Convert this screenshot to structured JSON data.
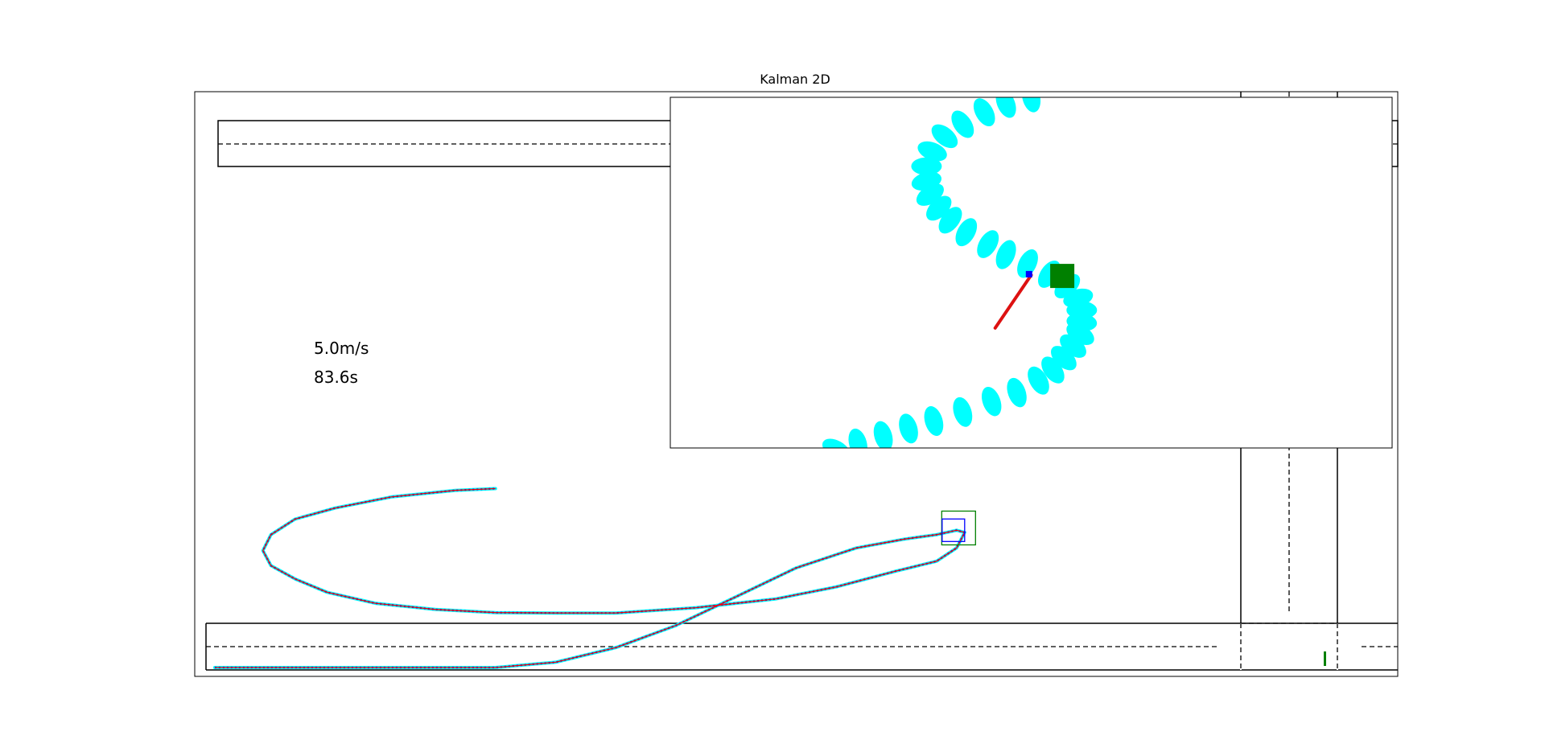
{
  "figure": {
    "title": "Kalman 2D",
    "speed_text": "5.0m/s",
    "time_text": "83.6s"
  },
  "colors": {
    "road_line": "#000000",
    "lane_marking": "#000000",
    "measurement_ellipse": "#00ffff",
    "kalman_estimate": "#0000ff",
    "true_path": "#ff0000",
    "vehicle": "#008000",
    "heading_line": "#dd1111"
  },
  "icons": {
    "vehicle": "green-square-marker",
    "estimate": "blue-square-marker"
  },
  "chart_data": {
    "type": "line",
    "main_view": {
      "series": [
        {
          "x": [
            -70,
            -60,
            -40,
            -20,
            -8,
            0,
            15,
            30,
            45,
            60,
            75,
            90,
            102,
            110,
            115,
            117,
            115,
            110,
            100,
            85,
            70,
            50,
            30,
            15,
            0,
            -15,
            -30,
            -42,
            -50,
            -56,
            -58,
            -56,
            -50,
            -40,
            -26,
            -10,
            0
          ],
          "y": [
            0,
            0,
            0,
            0,
            0,
            0,
            1.2,
            4.5,
            9.5,
            16,
            22.5,
            27,
            29,
            30,
            31,
            30.5,
            27,
            24,
            21.8,
            18.2,
            15.5,
            13.5,
            12.3,
            12.3,
            12.4,
            13.1,
            14.5,
            17,
            20,
            23,
            26.4,
            30,
            33.5,
            36,
            38.5,
            40,
            40.4
          ]
        }
      ],
      "vehicle_position": [
        115.5,
        31.5
      ],
      "estimate_position": [
        114.2,
        31
      ],
      "xlim": [
        -75,
        225
      ],
      "ylim": [
        -2,
        130
      ]
    },
    "zoom_view": {
      "ellipses": [
        [
          0.0,
          -38
        ],
        [
          -3.5,
          -36
        ],
        [
          -6.5,
          -33
        ],
        [
          -9.5,
          -29
        ],
        [
          -12,
          -25
        ],
        [
          -13.7,
          -20
        ],
        [
          -14.5,
          -15
        ],
        [
          -14.5,
          -10
        ],
        [
          -14,
          -5.5
        ],
        [
          -12.8,
          -1
        ],
        [
          -11.2,
          3
        ],
        [
          -9,
          7
        ],
        [
          -6,
          11
        ],
        [
          -3.5,
          14.5
        ],
        [
          -0.5,
          17.5
        ],
        [
          2.5,
          21
        ],
        [
          5,
          25
        ],
        [
          6.5,
          29
        ],
        [
          7,
          33
        ],
        [
          7,
          37
        ],
        [
          6.8,
          41
        ],
        [
          5.8,
          45
        ],
        [
          4.5,
          49
        ],
        [
          3,
          53
        ],
        [
          1,
          56.5
        ],
        [
          -2,
          60.5
        ],
        [
          -5.5,
          63.5
        ],
        [
          -9.5,
          67
        ],
        [
          -13.5,
          70
        ],
        [
          -17,
          72.5
        ],
        [
          -20.5,
          75
        ],
        [
          -24,
          77.5
        ],
        [
          -27,
          79.5
        ]
      ],
      "heading_line": [
        [
          0,
          21.3
        ],
        [
          -5,
          39
        ]
      ],
      "vehicle_position": [
        4.3,
        21.6
      ],
      "estimate_position": [
        -0.3,
        21
      ],
      "xlim": [
        -50,
        50
      ],
      "ylim": [
        -38,
        79
      ]
    }
  }
}
